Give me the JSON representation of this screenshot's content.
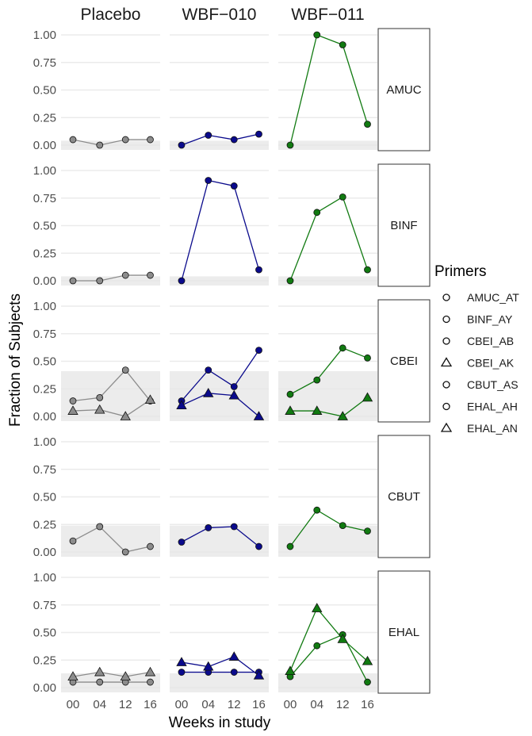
{
  "chart_data": {
    "type": "line",
    "x_axis_title": "Weeks in study",
    "y_axis_title": "Fraction of Subjects",
    "x_ticks": [
      "00",
      "04",
      "12",
      "16"
    ],
    "y_ticks": [
      "0.00",
      "0.25",
      "0.50",
      "0.75",
      "1.00"
    ],
    "ylim": [
      0,
      1
    ],
    "columns": [
      "Placebo",
      "WBF−010",
      "WBF−011"
    ],
    "column_colors": [
      "#8c8c8c",
      "#0a0a8c",
      "#117a11"
    ],
    "rows": [
      "AMUC",
      "BINF",
      "CBEI",
      "CBUT",
      "EHAL"
    ],
    "background_bands": {
      "AMUC": 0.04,
      "BINF": 0.04,
      "CBEI": 0.41,
      "CBUT": 0.24,
      "EHAL": 0.13
    },
    "legend": {
      "title": "Primers",
      "entries": [
        {
          "label": "AMUC_AT",
          "shape": "circle"
        },
        {
          "label": "BINF_AY",
          "shape": "circle"
        },
        {
          "label": "CBEI_AB",
          "shape": "circle"
        },
        {
          "label": "CBEI_AK",
          "shape": "triangle"
        },
        {
          "label": "CBUT_AS",
          "shape": "circle"
        },
        {
          "label": "EHAL_AH",
          "shape": "circle"
        },
        {
          "label": "EHAL_AN",
          "shape": "triangle"
        }
      ]
    },
    "series": [
      {
        "row": "AMUC",
        "column": "Placebo",
        "primer": "AMUC_AT",
        "shape": "circle",
        "values": [
          0.05,
          0.0,
          0.05,
          0.05
        ]
      },
      {
        "row": "AMUC",
        "column": "WBF−010",
        "primer": "AMUC_AT",
        "shape": "circle",
        "values": [
          0.0,
          0.09,
          0.05,
          0.1
        ]
      },
      {
        "row": "AMUC",
        "column": "WBF−011",
        "primer": "AMUC_AT",
        "shape": "circle",
        "values": [
          0.0,
          1.0,
          0.91,
          0.19
        ]
      },
      {
        "row": "BINF",
        "column": "Placebo",
        "primer": "BINF_AY",
        "shape": "circle",
        "values": [
          0.0,
          0.0,
          0.05,
          0.05
        ]
      },
      {
        "row": "BINF",
        "column": "WBF−010",
        "primer": "BINF_AY",
        "shape": "circle",
        "values": [
          0.0,
          0.91,
          0.86,
          0.1
        ]
      },
      {
        "row": "BINF",
        "column": "WBF−011",
        "primer": "BINF_AY",
        "shape": "circle",
        "values": [
          0.0,
          0.62,
          0.76,
          0.1
        ]
      },
      {
        "row": "CBEI",
        "column": "Placebo",
        "primer": "CBEI_AB",
        "shape": "circle",
        "values": [
          0.14,
          0.17,
          0.42,
          0.14
        ]
      },
      {
        "row": "CBEI",
        "column": "Placebo",
        "primer": "CBEI_AK",
        "shape": "triangle",
        "values": [
          0.05,
          0.06,
          0.0,
          0.15
        ]
      },
      {
        "row": "CBEI",
        "column": "WBF−010",
        "primer": "CBEI_AB",
        "shape": "circle",
        "values": [
          0.14,
          0.42,
          0.27,
          0.6
        ]
      },
      {
        "row": "CBEI",
        "column": "WBF−010",
        "primer": "CBEI_AK",
        "shape": "triangle",
        "values": [
          0.1,
          0.21,
          0.19,
          0.0
        ]
      },
      {
        "row": "CBEI",
        "column": "WBF−011",
        "primer": "CBEI_AB",
        "shape": "circle",
        "values": [
          0.2,
          0.33,
          0.62,
          0.53
        ]
      },
      {
        "row": "CBEI",
        "column": "WBF−011",
        "primer": "CBEI_AK",
        "shape": "triangle",
        "values": [
          0.05,
          0.05,
          0.0,
          0.17
        ]
      },
      {
        "row": "CBUT",
        "column": "Placebo",
        "primer": "CBUT_AS",
        "shape": "circle",
        "values": [
          0.1,
          0.23,
          0.0,
          0.05
        ]
      },
      {
        "row": "CBUT",
        "column": "WBF−010",
        "primer": "CBUT_AS",
        "shape": "circle",
        "values": [
          0.09,
          0.22,
          0.23,
          0.05
        ]
      },
      {
        "row": "CBUT",
        "column": "WBF−011",
        "primer": "CBUT_AS",
        "shape": "circle",
        "values": [
          0.05,
          0.38,
          0.24,
          0.19
        ]
      },
      {
        "row": "EHAL",
        "column": "Placebo",
        "primer": "EHAL_AH",
        "shape": "circle",
        "values": [
          0.05,
          0.05,
          0.05,
          0.05
        ]
      },
      {
        "row": "EHAL",
        "column": "Placebo",
        "primer": "EHAL_AN",
        "shape": "triangle",
        "values": [
          0.1,
          0.14,
          0.1,
          0.14
        ]
      },
      {
        "row": "EHAL",
        "column": "WBF−010",
        "primer": "EHAL_AH",
        "shape": "circle",
        "values": [
          0.14,
          0.14,
          0.14,
          0.14
        ]
      },
      {
        "row": "EHAL",
        "column": "WBF−010",
        "primer": "EHAL_AN",
        "shape": "triangle",
        "values": [
          0.23,
          0.19,
          0.28,
          0.11
        ]
      },
      {
        "row": "EHAL",
        "column": "WBF−011",
        "primer": "EHAL_AH",
        "shape": "circle",
        "values": [
          0.1,
          0.38,
          0.48,
          0.05
        ]
      },
      {
        "row": "EHAL",
        "column": "WBF−011",
        "primer": "EHAL_AN",
        "shape": "triangle",
        "values": [
          0.15,
          0.72,
          0.44,
          0.24
        ]
      }
    ]
  }
}
